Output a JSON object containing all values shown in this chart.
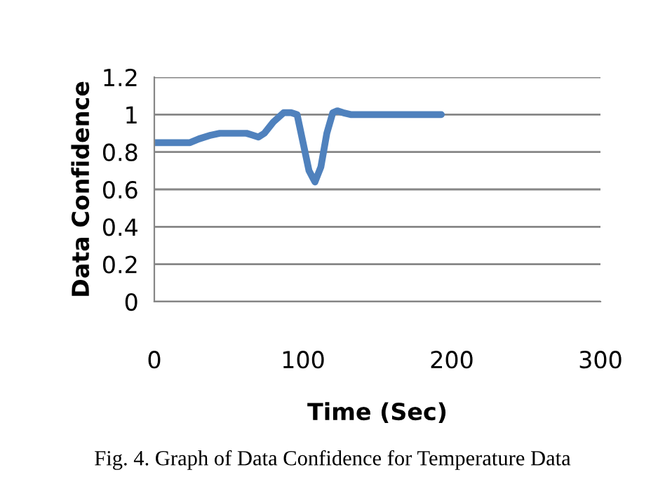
{
  "chart_data": {
    "type": "line",
    "xlabel": "Time (Sec)",
    "ylabel": "Data Confidence",
    "annotations": [
      "Fig. 4. Graph of Data Confidence for Temperature Data"
    ],
    "series": [
      {
        "color": "#4f81bd",
        "x": [
          0,
          10,
          24,
          30,
          38,
          44,
          52,
          62,
          66,
          70,
          74,
          80,
          87,
          92,
          96,
          100,
          104,
          108,
          112,
          116,
          120,
          123,
          127,
          132,
          150,
          170,
          193
        ],
        "values": [
          0.85,
          0.85,
          0.85,
          0.87,
          0.89,
          0.9,
          0.9,
          0.9,
          0.89,
          0.88,
          0.9,
          0.96,
          1.01,
          1.01,
          1.0,
          0.85,
          0.7,
          0.64,
          0.72,
          0.9,
          1.01,
          1.02,
          1.01,
          1.0,
          1.0,
          1.0,
          1.0
        ]
      }
    ],
    "xlim": [
      0,
      300
    ],
    "xticks": [
      0,
      100,
      200,
      300
    ],
    "ylim": [
      0,
      1.2
    ],
    "yticks": [
      0,
      0.2,
      0.4,
      0.6,
      0.8,
      1,
      1.2
    ],
    "grid": "y",
    "legend": false,
    "marker": "none",
    "line_style": "solid"
  }
}
